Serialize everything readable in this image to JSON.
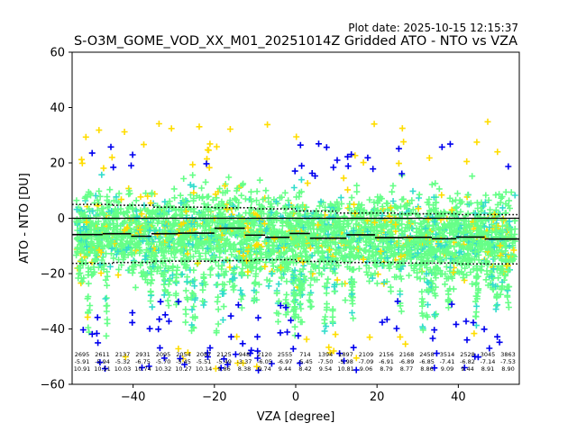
{
  "chart_data": {
    "type": "scatter",
    "title": "S-O3M_GOME_VOD_XX_M01_20251014Z Gridded ATO - NTO vs VZA",
    "plot_date": "Plot date: 2025-10-15 12:15:37",
    "xlabel": "VZA [degree]",
    "ylabel": "ATO - NTO [DU]",
    "xlim": [
      -55,
      55
    ],
    "ylim": [
      -60,
      60
    ],
    "xticks": [
      -40,
      -20,
      0,
      20,
      40
    ],
    "yticks": [
      -60,
      -40,
      -20,
      0,
      20,
      40,
      60
    ],
    "xtick_labels": [
      "−40",
      "−20",
      "0",
      "20",
      "40"
    ],
    "ytick_labels": [
      "−60",
      "−40",
      "−20",
      "0",
      "20",
      "40",
      "60"
    ],
    "marker": "+",
    "colors": {
      "green": "#66ff88",
      "cyan": "#33ddcc",
      "yellow": "#ffdd00",
      "blue": "#0000ee",
      "line": "#000000",
      "frame": "#000000"
    },
    "bins": [
      {
        "x": -51.5,
        "count": "2695",
        "mean": "-5.91",
        "std": "10.91"
      },
      {
        "x": -47.5,
        "count": "2611",
        "mean": "-5.94",
        "std": "10.51"
      },
      {
        "x": -43.5,
        "count": "2137",
        "mean": "-5.32",
        "std": "10.03"
      },
      {
        "x": -39.5,
        "count": "2931",
        "mean": "-6.75",
        "std": "10.74"
      },
      {
        "x": -35.5,
        "count": "2095",
        "mean": "-5.70",
        "std": "10.32"
      },
      {
        "x": -31.5,
        "count": "2054",
        "mean": "-5.45",
        "std": "10.27"
      },
      {
        "x": -27.5,
        "count": "2087",
        "mean": "-5.51",
        "std": "10.14"
      },
      {
        "x": -23.5,
        "count": "2125",
        "mean": "-5.49",
        "std": "9.86"
      },
      {
        "x": -19.5,
        "count": "948",
        "mean": "-3.37",
        "std": "8.38"
      },
      {
        "x": -15.5,
        "count": "2120",
        "mean": "-6.05",
        "std": "9.74"
      },
      {
        "x": -11.5,
        "count": "2555",
        "mean": "-6.97",
        "std": "9.44"
      },
      {
        "x": -7.5,
        "count": "714",
        "mean": "-5.45",
        "std": "8.42"
      },
      {
        "x": -3.5,
        "count": "1394",
        "mean": "-7.50",
        "std": "9.54"
      },
      {
        "x": 0.5,
        "count": "1897",
        "mean": "-5.98",
        "std": "10.81"
      },
      {
        "x": 4.5,
        "count": "2109",
        "mean": "-7.09",
        "std": "9.06"
      },
      {
        "x": 8.5,
        "count": "2156",
        "mean": "-6.91",
        "std": "8.79"
      },
      {
        "x": 12.5,
        "count": "2168",
        "mean": "-6.89",
        "std": "8.77"
      },
      {
        "x": 16.5,
        "count": "2458",
        "mean": "-6.85",
        "std": "8.86"
      },
      {
        "x": 20.5,
        "count": "3514",
        "mean": "-7.41",
        "std": "9.09"
      },
      {
        "x": 24.5,
        "count": "2528",
        "mean": "-6.82",
        "std": "9.44"
      },
      {
        "x": 28.5,
        "count": "3045",
        "mean": "-7.14",
        "std": "8.91"
      },
      {
        "x": 32.5,
        "count": "3863",
        "mean": "-7.53",
        "std": "8.90"
      }
    ],
    "line_steps": [
      {
        "x0": -55,
        "x1": -47.5,
        "y": -5.9
      },
      {
        "x0": -47.5,
        "x1": -40.5,
        "y": -5.6
      },
      {
        "x0": -40.5,
        "x1": -35.5,
        "y": -6.5
      },
      {
        "x0": -35.5,
        "x1": -29,
        "y": -5.6
      },
      {
        "x0": -29,
        "x1": -20,
        "y": -5.4
      },
      {
        "x0": -20,
        "x1": -12.5,
        "y": -3.6
      },
      {
        "x0": -12.5,
        "x1": -7.5,
        "y": -6.1
      },
      {
        "x0": -7.5,
        "x1": -1.5,
        "y": -6.9
      },
      {
        "x0": -1.5,
        "x1": 3.5,
        "y": -5.5
      },
      {
        "x0": 3.5,
        "x1": 12.5,
        "y": -7.2
      },
      {
        "x0": 12.5,
        "x1": 19.5,
        "y": -6.0
      },
      {
        "x0": 19.5,
        "x1": 26.5,
        "y": -7.0
      },
      {
        "x0": 26.5,
        "x1": 33.5,
        "y": -6.9
      },
      {
        "x0": 33.5,
        "x1": 39.5,
        "y": -7.4
      },
      {
        "x0": 39.5,
        "x1": 46.5,
        "y": -6.8
      },
      {
        "x0": 46.5,
        "x1": 55,
        "y": -7.5
      }
    ],
    "upper_sigma": [
      {
        "x0": -55,
        "x1": -45,
        "y": 5.0
      },
      {
        "x0": -45,
        "x1": -35,
        "y": 4.7
      },
      {
        "x0": -35,
        "x1": -20,
        "y": 4.0
      },
      {
        "x0": -20,
        "x1": -10,
        "y": 3.8
      },
      {
        "x0": -10,
        "x1": 0,
        "y": 3.4
      },
      {
        "x0": 0,
        "x1": 10,
        "y": 2.6
      },
      {
        "x0": 10,
        "x1": 25,
        "y": 1.9
      },
      {
        "x0": 25,
        "x1": 40,
        "y": 1.6
      },
      {
        "x0": 40,
        "x1": 55,
        "y": 1.3
      }
    ],
    "lower_sigma": [
      {
        "x0": -55,
        "x1": -45,
        "y": -16.3
      },
      {
        "x0": -45,
        "x1": -35,
        "y": -16.0
      },
      {
        "x0": -35,
        "x1": -20,
        "y": -15.5
      },
      {
        "x0": -20,
        "x1": -10,
        "y": -15.3
      },
      {
        "x0": -10,
        "x1": 0,
        "y": -15.0
      },
      {
        "x0": 0,
        "x1": 10,
        "y": -15.6
      },
      {
        "x0": 10,
        "x1": 25,
        "y": -16.0
      },
      {
        "x0": 25,
        "x1": 40,
        "y": -16.2
      },
      {
        "x0": 40,
        "x1": 55,
        "y": -16.5
      }
    ],
    "zero_line": 0
  }
}
